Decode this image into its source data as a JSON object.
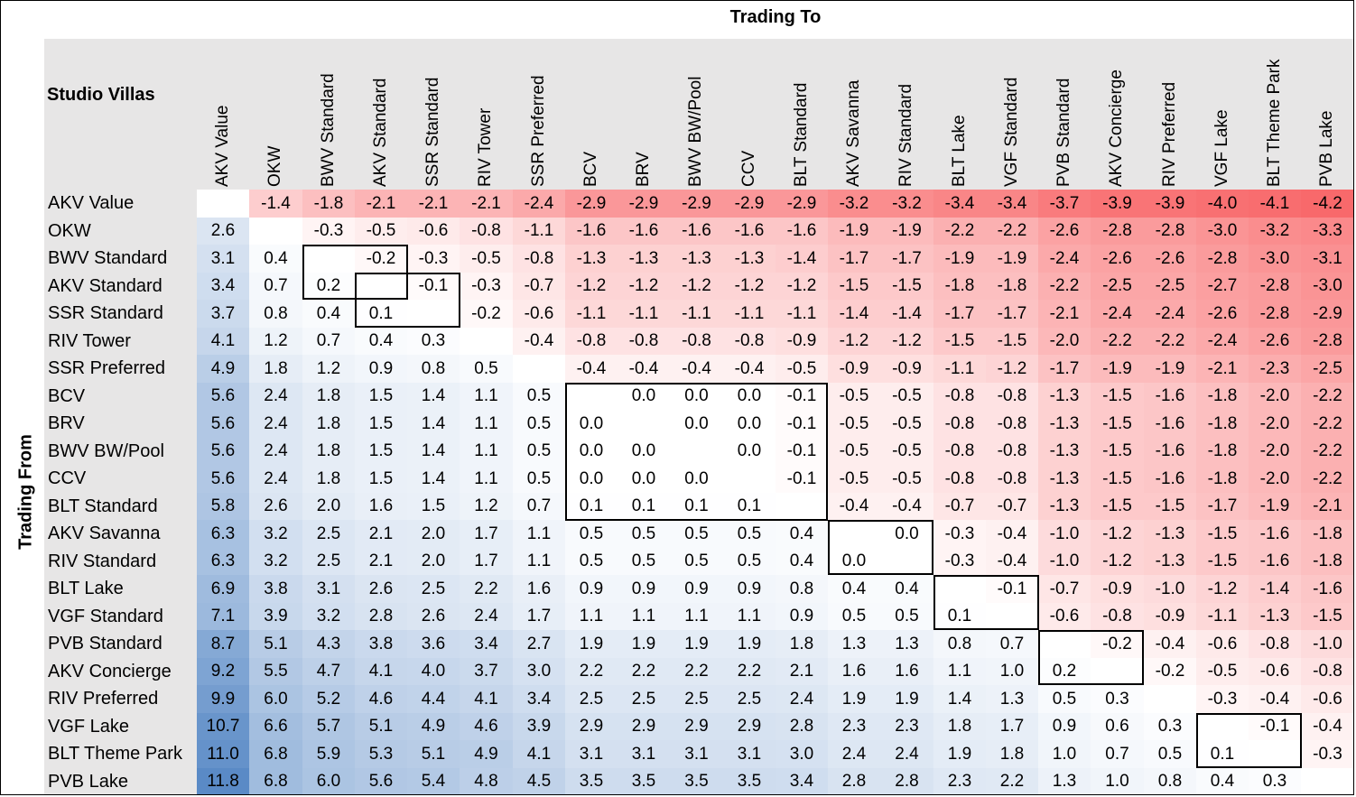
{
  "titles": {
    "corner": "Studio Villas",
    "trading_to": "Trading To",
    "trading_from": "Trading From"
  },
  "colors": {
    "header_bg": "#e7e6e6",
    "negative": "#f8696b",
    "positive": "#5a8ac6",
    "neutral": "#ffffff",
    "box_border": "#000000"
  },
  "chart_data": {
    "type": "heatmap",
    "title": "Studio Villas",
    "xlabel": "Trading To",
    "ylabel": "Trading From",
    "columns": [
      "AKV Value",
      "OKW",
      "BWV Standard",
      "AKV Standard",
      "SSR Standard",
      "RIV Tower",
      "SSR Preferred",
      "BCV",
      "BRV",
      "BWV BW/Pool",
      "CCV",
      "BLT Standard",
      "AKV Savanna",
      "RIV Standard",
      "BLT Lake",
      "VGF Standard",
      "PVB Standard",
      "AKV Concierge",
      "RIV Preferred",
      "VGF Lake",
      "BLT Theme Park",
      "PVB Lake"
    ],
    "rows": [
      "AKV Value",
      "OKW",
      "BWV Standard",
      "AKV Standard",
      "SSR Standard",
      "RIV Tower",
      "SSR Preferred",
      "BCV",
      "BRV",
      "BWV BW/Pool",
      "CCV",
      "BLT Standard",
      "AKV Savanna",
      "RIV Standard",
      "BLT Lake",
      "VGF Standard",
      "PVB Standard",
      "AKV Concierge",
      "RIV Preferred",
      "VGF Lake",
      "BLT Theme Park",
      "PVB Lake"
    ],
    "values": [
      [
        "",
        "-1.4",
        "-1.8",
        "-2.1",
        "-2.1",
        "-2.1",
        "-2.4",
        "-2.9",
        "-2.9",
        "-2.9",
        "-2.9",
        "-2.9",
        "-3.2",
        "-3.2",
        "-3.4",
        "-3.4",
        "-3.7",
        "-3.9",
        "-3.9",
        "-4.0",
        "-4.1",
        "-4.2"
      ],
      [
        "2.6",
        "",
        "-0.3",
        "-0.5",
        "-0.6",
        "-0.8",
        "-1.1",
        "-1.6",
        "-1.6",
        "-1.6",
        "-1.6",
        "-1.6",
        "-1.9",
        "-1.9",
        "-2.2",
        "-2.2",
        "-2.6",
        "-2.8",
        "-2.8",
        "-3.0",
        "-3.2",
        "-3.3"
      ],
      [
        "3.1",
        "0.4",
        "",
        "-0.2",
        "-0.3",
        "-0.5",
        "-0.8",
        "-1.3",
        "-1.3",
        "-1.3",
        "-1.3",
        "-1.4",
        "-1.7",
        "-1.7",
        "-1.9",
        "-1.9",
        "-2.4",
        "-2.6",
        "-2.6",
        "-2.8",
        "-3.0",
        "-3.1"
      ],
      [
        "3.4",
        "0.7",
        "0.2",
        "",
        "-0.1",
        "-0.3",
        "-0.7",
        "-1.2",
        "-1.2",
        "-1.2",
        "-1.2",
        "-1.2",
        "-1.5",
        "-1.5",
        "-1.8",
        "-1.8",
        "-2.2",
        "-2.5",
        "-2.5",
        "-2.7",
        "-2.8",
        "-3.0"
      ],
      [
        "3.7",
        "0.8",
        "0.4",
        "0.1",
        "",
        "-0.2",
        "-0.6",
        "-1.1",
        "-1.1",
        "-1.1",
        "-1.1",
        "-1.1",
        "-1.4",
        "-1.4",
        "-1.7",
        "-1.7",
        "-2.1",
        "-2.4",
        "-2.4",
        "-2.6",
        "-2.8",
        "-2.9"
      ],
      [
        "4.1",
        "1.2",
        "0.7",
        "0.4",
        "0.3",
        "",
        "-0.4",
        "-0.8",
        "-0.8",
        "-0.8",
        "-0.8",
        "-0.9",
        "-1.2",
        "-1.2",
        "-1.5",
        "-1.5",
        "-2.0",
        "-2.2",
        "-2.2",
        "-2.4",
        "-2.6",
        "-2.8"
      ],
      [
        "4.9",
        "1.8",
        "1.2",
        "0.9",
        "0.8",
        "0.5",
        "",
        "-0.4",
        "-0.4",
        "-0.4",
        "-0.4",
        "-0.5",
        "-0.9",
        "-0.9",
        "-1.1",
        "-1.2",
        "-1.7",
        "-1.9",
        "-1.9",
        "-2.1",
        "-2.3",
        "-2.5"
      ],
      [
        "5.6",
        "2.4",
        "1.8",
        "1.5",
        "1.4",
        "1.1",
        "0.5",
        "",
        "0.0",
        "0.0",
        "0.0",
        "-0.1",
        "-0.5",
        "-0.5",
        "-0.8",
        "-0.8",
        "-1.3",
        "-1.5",
        "-1.6",
        "-1.8",
        "-2.0",
        "-2.2"
      ],
      [
        "5.6",
        "2.4",
        "1.8",
        "1.5",
        "1.4",
        "1.1",
        "0.5",
        "0.0",
        "",
        "0.0",
        "0.0",
        "-0.1",
        "-0.5",
        "-0.5",
        "-0.8",
        "-0.8",
        "-1.3",
        "-1.5",
        "-1.6",
        "-1.8",
        "-2.0",
        "-2.2"
      ],
      [
        "5.6",
        "2.4",
        "1.8",
        "1.5",
        "1.4",
        "1.1",
        "0.5",
        "0.0",
        "0.0",
        "",
        "0.0",
        "-0.1",
        "-0.5",
        "-0.5",
        "-0.8",
        "-0.8",
        "-1.3",
        "-1.5",
        "-1.6",
        "-1.8",
        "-2.0",
        "-2.2"
      ],
      [
        "5.6",
        "2.4",
        "1.8",
        "1.5",
        "1.4",
        "1.1",
        "0.5",
        "0.0",
        "0.0",
        "0.0",
        "",
        "-0.1",
        "-0.5",
        "-0.5",
        "-0.8",
        "-0.8",
        "-1.3",
        "-1.5",
        "-1.6",
        "-1.8",
        "-2.0",
        "-2.2"
      ],
      [
        "5.8",
        "2.6",
        "2.0",
        "1.6",
        "1.5",
        "1.2",
        "0.7",
        "0.1",
        "0.1",
        "0.1",
        "0.1",
        "",
        "-0.4",
        "-0.4",
        "-0.7",
        "-0.7",
        "-1.3",
        "-1.5",
        "-1.5",
        "-1.7",
        "-1.9",
        "-2.1"
      ],
      [
        "6.3",
        "3.2",
        "2.5",
        "2.1",
        "2.0",
        "1.7",
        "1.1",
        "0.5",
        "0.5",
        "0.5",
        "0.5",
        "0.4",
        "",
        "0.0",
        "-0.3",
        "-0.4",
        "-1.0",
        "-1.2",
        "-1.3",
        "-1.5",
        "-1.6",
        "-1.8"
      ],
      [
        "6.3",
        "3.2",
        "2.5",
        "2.1",
        "2.0",
        "1.7",
        "1.1",
        "0.5",
        "0.5",
        "0.5",
        "0.5",
        "0.4",
        "0.0",
        "",
        "-0.3",
        "-0.4",
        "-1.0",
        "-1.2",
        "-1.3",
        "-1.5",
        "-1.6",
        "-1.8"
      ],
      [
        "6.9",
        "3.8",
        "3.1",
        "2.6",
        "2.5",
        "2.2",
        "1.6",
        "0.9",
        "0.9",
        "0.9",
        "0.9",
        "0.8",
        "0.4",
        "0.4",
        "",
        "-0.1",
        "-0.7",
        "-0.9",
        "-1.0",
        "-1.2",
        "-1.4",
        "-1.6"
      ],
      [
        "7.1",
        "3.9",
        "3.2",
        "2.8",
        "2.6",
        "2.4",
        "1.7",
        "1.1",
        "1.1",
        "1.1",
        "1.1",
        "0.9",
        "0.5",
        "0.5",
        "0.1",
        "",
        "-0.6",
        "-0.8",
        "-0.9",
        "-1.1",
        "-1.3",
        "-1.5"
      ],
      [
        "8.7",
        "5.1",
        "4.3",
        "3.8",
        "3.6",
        "3.4",
        "2.7",
        "1.9",
        "1.9",
        "1.9",
        "1.9",
        "1.8",
        "1.3",
        "1.3",
        "0.8",
        "0.7",
        "",
        "-0.2",
        "-0.4",
        "-0.6",
        "-0.8",
        "-1.0"
      ],
      [
        "9.2",
        "5.5",
        "4.7",
        "4.1",
        "4.0",
        "3.7",
        "3.0",
        "2.2",
        "2.2",
        "2.2",
        "2.2",
        "2.1",
        "1.6",
        "1.6",
        "1.1",
        "1.0",
        "0.2",
        "",
        "-0.2",
        "-0.5",
        "-0.6",
        "-0.8"
      ],
      [
        "9.9",
        "6.0",
        "5.2",
        "4.6",
        "4.4",
        "4.1",
        "3.4",
        "2.5",
        "2.5",
        "2.5",
        "2.5",
        "2.4",
        "1.9",
        "1.9",
        "1.4",
        "1.3",
        "0.5",
        "0.3",
        "",
        "-0.3",
        "-0.4",
        "-0.6"
      ],
      [
        "10.7",
        "6.6",
        "5.7",
        "5.1",
        "4.9",
        "4.6",
        "3.9",
        "2.9",
        "2.9",
        "2.9",
        "2.9",
        "2.8",
        "2.3",
        "2.3",
        "1.8",
        "1.7",
        "0.9",
        "0.6",
        "0.3",
        "",
        "-0.1",
        "-0.4"
      ],
      [
        "11.0",
        "6.8",
        "5.9",
        "5.3",
        "5.1",
        "4.9",
        "4.1",
        "3.1",
        "3.1",
        "3.1",
        "3.1",
        "3.0",
        "2.4",
        "2.4",
        "1.9",
        "1.8",
        "1.0",
        "0.7",
        "0.5",
        "0.1",
        "",
        "-0.3"
      ],
      [
        "11.8",
        "6.8",
        "6.0",
        "5.6",
        "5.4",
        "4.8",
        "4.5",
        "3.5",
        "3.5",
        "3.5",
        "3.5",
        "3.4",
        "2.8",
        "2.8",
        "2.3",
        "2.2",
        "1.3",
        "1.0",
        "0.8",
        "0.4",
        "0.3",
        ""
      ]
    ],
    "color_scale": {
      "min": -4.2,
      "max": 11.8,
      "mid": 0
    },
    "boxed_groups": [
      [
        "BWV Standard",
        "AKV Standard"
      ],
      [
        "AKV Standard",
        "SSR Standard"
      ],
      [
        "BCV",
        "BRV",
        "BWV BW/Pool",
        "CCV",
        "BLT Standard"
      ],
      [
        "AKV Savanna",
        "RIV Standard"
      ],
      [
        "BLT Lake",
        "VGF Standard"
      ],
      [
        "PVB Standard",
        "AKV Concierge"
      ],
      [
        "VGF Lake",
        "BLT Theme Park"
      ]
    ]
  }
}
